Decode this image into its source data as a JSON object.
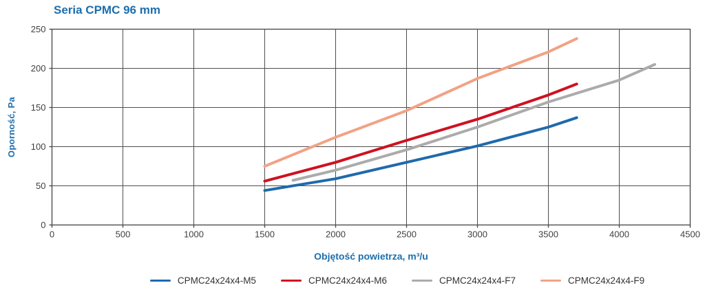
{
  "title": "Seria CPMC 96 mm",
  "colors": {
    "title_blue": "#1C6EAE",
    "grid": "#4D4D4D",
    "tick_label": "#3F3F3F",
    "legend_label": "#333333"
  },
  "chart_data": {
    "type": "line",
    "title": "Seria CPMC 96 mm",
    "xlabel": "Objętość powietrza, m³/u",
    "ylabel": "Oporność, Pa",
    "xlim": [
      0,
      4500
    ],
    "ylim": [
      0,
      250
    ],
    "x_ticks": [
      0,
      500,
      1000,
      1500,
      2000,
      2500,
      3000,
      3500,
      4000,
      4500
    ],
    "y_ticks": [
      0,
      50,
      100,
      150,
      200,
      250
    ],
    "grid": true,
    "legend_position": "bottom",
    "series": [
      {
        "name": "CPMC24x24x4-M5",
        "color": "#1E6AAC",
        "points": [
          [
            1500,
            44
          ],
          [
            2000,
            59
          ],
          [
            2500,
            80
          ],
          [
            3000,
            101
          ],
          [
            3500,
            125
          ],
          [
            3700,
            137
          ]
        ]
      },
      {
        "name": "CPMC24x24x4-M6",
        "color": "#CE1220",
        "points": [
          [
            1500,
            56
          ],
          [
            2000,
            80
          ],
          [
            2500,
            108
          ],
          [
            3000,
            135
          ],
          [
            3500,
            166
          ],
          [
            3700,
            180
          ]
        ]
      },
      {
        "name": "CPMC24x24x4-F7",
        "color": "#ABABAB",
        "points": [
          [
            1700,
            57
          ],
          [
            2000,
            70
          ],
          [
            2500,
            96
          ],
          [
            3000,
            125
          ],
          [
            3500,
            157
          ],
          [
            4000,
            185
          ],
          [
            4250,
            205
          ]
        ]
      },
      {
        "name": "CPMC24x24x4-F9",
        "color": "#F2A285",
        "points": [
          [
            1500,
            75
          ],
          [
            2000,
            112
          ],
          [
            2500,
            146
          ],
          [
            3000,
            187
          ],
          [
            3500,
            221
          ],
          [
            3700,
            238
          ]
        ]
      }
    ]
  }
}
